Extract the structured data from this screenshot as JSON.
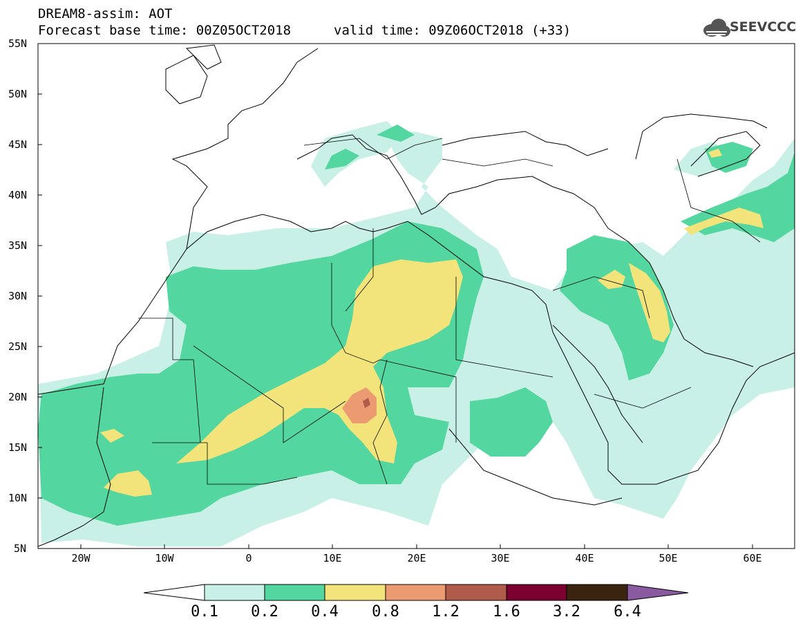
{
  "header": {
    "title": "DREAM8-assim: AOT",
    "base_time": "Forecast base time: 00Z05OCT2018",
    "valid_time": "valid time: 09Z06OCT2018 (+33)",
    "logo_text": "SEEVCCC"
  },
  "axes": {
    "lat_labels": [
      "55N",
      "50N",
      "45N",
      "40N",
      "35N",
      "30N",
      "25N",
      "20N",
      "15N",
      "10N",
      "5N"
    ],
    "lon_labels": [
      "20W",
      "10W",
      "0",
      "10E",
      "20E",
      "30E",
      "40E",
      "50E",
      "60E"
    ]
  },
  "colorbar": {
    "labels": [
      "0.1",
      "0.2",
      "0.4",
      "0.8",
      "1.2",
      "1.6",
      "3.2",
      "6.4"
    ],
    "colors": [
      "#ffffff",
      "#c8f0e6",
      "#54d6a0",
      "#f2e47a",
      "#ec9a72",
      "#b05a4a",
      "#7a0030",
      "#3a2410",
      "#8a5aa0"
    ]
  },
  "colors": {
    "aot_0_1": "#c8f0e6",
    "aot_0_2": "#54d6a0",
    "aot_0_4": "#f2e47a",
    "aot_0_8": "#ec9a72",
    "aot_1_2": "#b05a4a"
  }
}
